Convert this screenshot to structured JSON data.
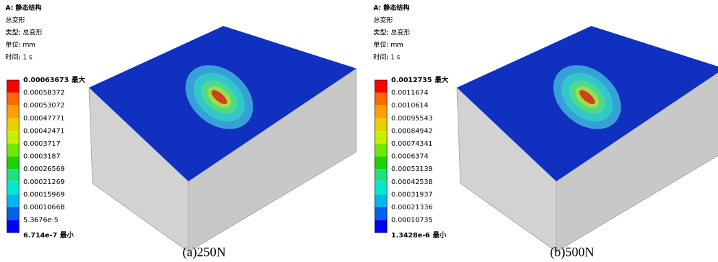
{
  "panels": [
    {
      "header": [
        "A: 静态结构",
        "总变形",
        "类型: 总变形",
        "单位: mm",
        "时间: 1 s"
      ],
      "legend": [
        "0.00063673",
        "0.00058372",
        "0.00053072",
        "0.00047771",
        "0.00042471",
        "0.0003717",
        "0.0003187",
        "0.00026569",
        "0.00021269",
        "0.00015969",
        "0.00010668",
        "5.3676e-5",
        "6.714e-7"
      ],
      "max_label": "最大",
      "min_label": "最小",
      "caption": "(a)250N"
    },
    {
      "header": [
        "A: 静态结构",
        "总变形",
        "类型: 总变形",
        "单位: mm",
        "时间: 1 s"
      ],
      "legend": [
        "0.0012735",
        "0.0011674",
        "0.0010614",
        "0.00095543",
        "0.00084942",
        "0.00074341",
        "0.0006374",
        "0.00053139",
        "0.00042538",
        "0.00031937",
        "0.00021336",
        "0.00010735",
        "1.3428e-6"
      ],
      "max_label": "最大",
      "min_label": "最小",
      "caption": "(b)500N"
    }
  ]
}
